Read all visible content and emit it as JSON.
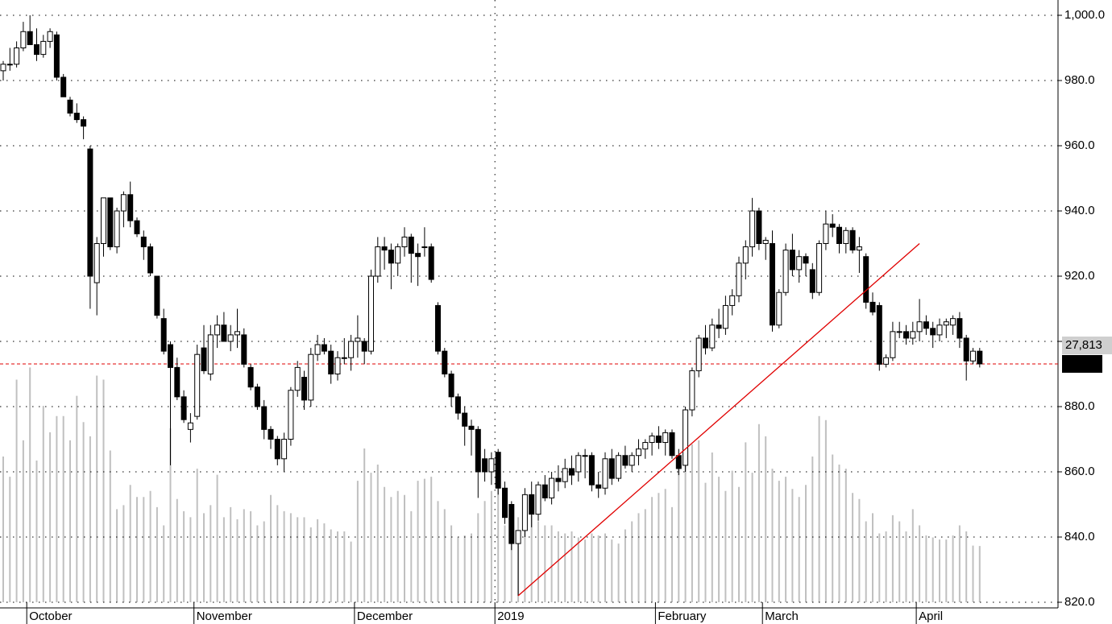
{
  "chart_data": {
    "type": "candlestick",
    "categories": [
      null,
      null,
      null,
      null,
      "October",
      null,
      null,
      null,
      null,
      null,
      null,
      null,
      null,
      null,
      null,
      null,
      null,
      null,
      null,
      null,
      null,
      null,
      null,
      null,
      null,
      null,
      null,
      null,
      null,
      "November",
      null,
      null,
      null,
      null,
      null,
      null,
      null,
      null,
      null,
      null,
      null,
      null,
      null,
      null,
      null,
      null,
      null,
      null,
      null,
      null,
      null,
      null,
      null,
      "December",
      null,
      null,
      null,
      null,
      null,
      null,
      null,
      null,
      null,
      null,
      null,
      null,
      null,
      null,
      null,
      null,
      null,
      null,
      null,
      null,
      "2019",
      null,
      null,
      null,
      null,
      null,
      null,
      null,
      null,
      null,
      null,
      null,
      null,
      null,
      null,
      null,
      null,
      null,
      null,
      null,
      null,
      null,
      null,
      null,
      "February",
      null,
      null,
      null,
      null,
      null,
      null,
      null,
      null,
      null,
      null,
      null,
      null,
      null,
      null,
      null,
      "March",
      null,
      null,
      null,
      null,
      null,
      null,
      null,
      null,
      null,
      null,
      null,
      null,
      null,
      null,
      null,
      null,
      null,
      null,
      null,
      null,
      null,
      null,
      "April",
      null,
      null,
      null,
      null,
      null,
      null,
      null,
      null,
      null
    ],
    "candles": [
      [
        983,
        986,
        980,
        985
      ],
      [
        985,
        990,
        983,
        985
      ],
      [
        985,
        992,
        984,
        990
      ],
      [
        990,
        998,
        989,
        995
      ],
      [
        995,
        1000,
        991,
        991
      ],
      [
        991,
        996,
        986,
        988
      ],
      [
        988,
        994,
        987,
        992
      ],
      [
        992,
        996,
        990,
        995
      ],
      [
        994,
        995,
        980,
        981
      ],
      [
        981,
        982,
        975,
        975
      ],
      [
        974,
        975,
        969,
        970
      ],
      [
        970,
        973,
        967,
        968
      ],
      [
        968,
        969,
        962,
        966
      ],
      [
        959,
        960,
        910,
        920
      ],
      [
        918,
        932,
        908,
        930
      ],
      [
        930,
        944,
        926,
        944
      ],
      [
        944,
        944,
        928,
        929
      ],
      [
        929,
        941,
        927,
        940
      ],
      [
        940,
        946,
        935,
        945
      ],
      [
        945,
        949,
        935,
        937
      ],
      [
        937,
        938,
        932,
        933
      ],
      [
        932,
        934,
        925,
        929
      ],
      [
        929,
        930,
        920,
        921
      ],
      [
        920,
        920,
        907,
        908
      ],
      [
        907,
        910,
        896,
        897
      ],
      [
        899,
        900,
        862,
        892
      ],
      [
        892,
        895,
        882,
        883
      ],
      [
        883,
        885,
        875,
        876
      ],
      [
        873,
        878,
        869,
        875
      ],
      [
        877,
        899,
        876,
        896
      ],
      [
        898,
        905,
        890,
        891
      ],
      [
        890,
        905,
        888,
        902
      ],
      [
        902,
        908,
        898,
        905
      ],
      [
        905,
        909,
        900,
        900
      ],
      [
        900,
        905,
        897,
        902
      ],
      [
        902,
        910,
        898,
        903
      ],
      [
        902,
        904,
        892,
        893
      ],
      [
        892,
        893,
        885,
        886
      ],
      [
        886,
        887,
        879,
        880
      ],
      [
        880,
        882,
        870,
        873
      ],
      [
        873,
        874,
        867,
        870
      ],
      [
        870,
        871,
        862,
        864
      ],
      [
        864,
        872,
        860,
        870
      ],
      [
        870,
        886,
        868,
        885
      ],
      [
        885,
        894,
        883,
        892
      ],
      [
        889,
        891,
        879,
        882
      ],
      [
        882,
        898,
        880,
        896
      ],
      [
        896,
        902,
        894,
        899
      ],
      [
        899,
        901,
        896,
        897
      ],
      [
        897,
        899,
        887,
        890
      ],
      [
        890,
        897,
        888,
        895
      ],
      [
        895,
        901,
        893,
        895
      ],
      [
        895,
        902,
        891,
        900
      ],
      [
        900,
        908,
        895,
        901
      ],
      [
        900,
        901,
        893,
        897
      ],
      [
        897,
        922,
        896,
        920
      ],
      [
        920,
        932,
        918,
        929
      ],
      [
        929,
        932,
        922,
        928
      ],
      [
        928,
        930,
        916,
        924
      ],
      [
        924,
        930,
        920,
        929
      ],
      [
        929,
        935,
        926,
        932
      ],
      [
        932,
        933,
        918,
        927
      ],
      [
        927,
        930,
        917,
        926
      ],
      [
        929,
        935,
        926,
        929
      ],
      [
        929,
        930,
        918,
        919
      ],
      [
        911,
        912,
        896,
        897
      ],
      [
        897,
        898,
        889,
        890
      ],
      [
        890,
        891,
        880,
        883
      ],
      [
        883,
        884,
        876,
        878
      ],
      [
        878,
        880,
        868,
        874
      ],
      [
        874,
        876,
        865,
        873
      ],
      [
        873,
        874,
        852,
        860
      ],
      [
        864,
        867,
        857,
        860
      ],
      [
        860,
        866,
        856,
        864
      ],
      [
        866,
        867,
        853,
        855
      ],
      [
        855,
        857,
        844,
        846
      ],
      [
        850,
        851,
        836,
        838
      ],
      [
        838,
        842,
        822,
        842
      ],
      [
        842,
        855,
        840,
        853
      ],
      [
        853,
        857,
        843,
        847
      ],
      [
        847,
        857,
        845,
        856
      ],
      [
        856,
        859,
        851,
        852
      ],
      [
        852,
        860,
        850,
        858
      ],
      [
        858,
        862,
        854,
        857
      ],
      [
        857,
        864,
        855,
        861
      ],
      [
        861,
        865,
        856,
        859
      ],
      [
        860,
        866,
        857,
        865
      ],
      [
        865,
        867,
        858,
        865
      ],
      [
        865,
        866,
        854,
        856
      ],
      [
        856,
        860,
        852,
        855
      ],
      [
        855,
        866,
        853,
        864
      ],
      [
        864,
        867,
        856,
        858
      ],
      [
        858,
        866,
        857,
        865
      ],
      [
        865,
        868,
        861,
        862
      ],
      [
        862,
        866,
        860,
        865
      ],
      [
        865,
        870,
        862,
        867
      ],
      [
        867,
        870,
        864,
        869
      ],
      [
        869,
        872,
        865,
        871
      ],
      [
        871,
        874,
        867,
        869
      ],
      [
        869,
        873,
        865,
        872
      ],
      [
        872,
        873,
        864,
        865
      ],
      [
        865,
        867,
        859,
        861
      ],
      [
        862,
        880,
        860,
        879
      ],
      [
        879,
        892,
        877,
        891
      ],
      [
        891,
        902,
        889,
        901
      ],
      [
        901,
        905,
        896,
        898
      ],
      [
        898,
        907,
        897,
        905
      ],
      [
        905,
        910,
        901,
        904
      ],
      [
        904,
        914,
        902,
        911
      ],
      [
        911,
        916,
        908,
        914
      ],
      [
        914,
        926,
        912,
        924
      ],
      [
        924,
        931,
        919,
        929
      ],
      [
        929,
        944,
        926,
        940
      ],
      [
        940,
        941,
        928,
        930
      ],
      [
        930,
        932,
        925,
        931
      ],
      [
        930,
        934,
        903,
        905
      ],
      [
        905,
        916,
        904,
        915
      ],
      [
        915,
        930,
        914,
        928
      ],
      [
        928,
        933,
        920,
        922
      ],
      [
        922,
        928,
        918,
        926
      ],
      [
        926,
        927,
        920,
        924
      ],
      [
        922,
        924,
        913,
        915
      ],
      [
        915,
        931,
        914,
        930
      ],
      [
        930,
        940,
        928,
        936
      ],
      [
        936,
        939,
        932,
        935
      ],
      [
        935,
        936,
        927,
        930
      ],
      [
        930,
        935,
        927,
        934
      ],
      [
        934,
        935,
        927,
        928
      ],
      [
        928,
        932,
        921,
        929
      ],
      [
        926,
        927,
        910,
        912
      ],
      [
        912,
        915,
        908,
        909
      ],
      [
        911,
        912,
        891,
        893
      ],
      [
        893,
        896,
        892,
        895
      ],
      [
        895,
        906,
        894,
        903
      ],
      [
        903,
        906,
        901,
        903
      ],
      [
        903,
        905,
        899,
        901
      ],
      [
        901,
        906,
        899,
        903
      ],
      [
        903,
        913,
        900,
        906
      ],
      [
        906,
        908,
        902,
        904
      ],
      [
        904,
        906,
        898,
        902
      ],
      [
        902,
        907,
        900,
        905
      ],
      [
        905,
        907,
        901,
        906
      ],
      [
        905,
        908,
        902,
        907
      ],
      [
        907,
        909,
        898,
        901
      ],
      [
        901,
        902,
        888,
        894
      ],
      [
        894,
        898,
        893,
        897
      ],
      [
        897,
        898,
        892,
        893.1
      ]
    ],
    "volume": [
      72000,
      62000,
      110000,
      80000,
      116000,
      70000,
      97000,
      84000,
      92000,
      92000,
      80000,
      102000,
      89000,
      82000,
      112000,
      110000,
      75000,
      46000,
      48000,
      58000,
      52000,
      52000,
      55000,
      47000,
      38000,
      86000,
      51000,
      45000,
      42000,
      66000,
      44000,
      48000,
      63000,
      42000,
      47000,
      41000,
      46000,
      45000,
      38000,
      40000,
      53000,
      48000,
      45000,
      44000,
      42000,
      42000,
      37000,
      41000,
      39000,
      36000,
      35000,
      35000,
      30000,
      60000,
      76000,
      64000,
      68000,
      57000,
      52000,
      55000,
      53000,
      45000,
      60000,
      61000,
      62000,
      50000,
      46000,
      38000,
      32000,
      33000,
      34000,
      44000,
      50000,
      55000,
      61000,
      38000,
      35000,
      42000,
      42000,
      43000,
      40000,
      38000,
      38000,
      35000,
      34000,
      35000,
      32000,
      31000,
      34000,
      33000,
      34000,
      31000,
      29000,
      36000,
      40000,
      44000,
      46000,
      52000,
      54000,
      56000,
      47000,
      66000,
      90000,
      78000,
      80000,
      59000,
      74000,
      62000,
      55000,
      65000,
      57000,
      79000,
      64000,
      88000,
      82000,
      66000,
      60000,
      62000,
      56000,
      52000,
      58000,
      72000,
      92000,
      90000,
      73000,
      68000,
      66000,
      54000,
      51000,
      40000,
      44000,
      34000,
      35000,
      43000,
      40000,
      35000,
      46000,
      38000,
      33000,
      32000,
      31000,
      31000,
      33000,
      38000,
      35000,
      28000,
      27813
    ],
    "ylim": [
      820,
      1000
    ],
    "yticks": [
      {
        "value": 820,
        "label": "820.0"
      },
      {
        "value": 840,
        "label": "840.0"
      },
      {
        "value": 860,
        "label": "860.0"
      },
      {
        "value": 880,
        "label": "880.0"
      },
      {
        "value": 900,
        "label": "900.0"
      },
      {
        "value": 920,
        "label": "920.0"
      },
      {
        "value": 940,
        "label": "940.0"
      },
      {
        "value": 960,
        "label": "960.0"
      },
      {
        "value": 980,
        "label": "980.0"
      },
      {
        "value": 1000,
        "label": "1,000.0"
      }
    ],
    "y2lim": [
      0,
      290000
    ],
    "grid": true,
    "up_color": "#ffffff",
    "down_color": "#000000",
    "volume_color": "#c0c0c0",
    "price_marker": 893.1,
    "price_marker_color": "#e00000",
    "volume_marker": {
      "value": 27813,
      "label": "27,813"
    },
    "trendline": {
      "x": [
        77,
        137
      ],
      "y": [
        822,
        930
      ],
      "color": "#e00000"
    }
  }
}
